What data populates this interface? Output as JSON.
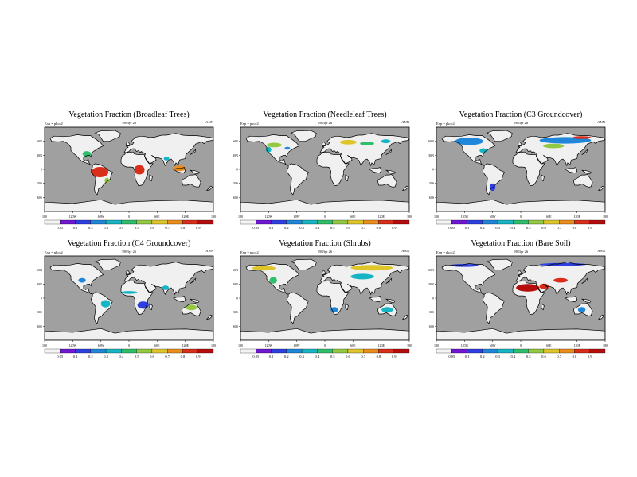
{
  "colors": {
    "ocean": "#a0a0a0",
    "land": "#f0f0f0",
    "coast": "#000000",
    "scale": [
      "#f4f4f4",
      "#6f17d3",
      "#2e3fe1",
      "#1f86d9",
      "#17b5c4",
      "#2fbf6b",
      "#93c842",
      "#ddc52a",
      "#eb8e1d",
      "#d92e1a",
      "#b50d0d"
    ]
  },
  "chart_data": [
    {
      "type": "heatmap",
      "title": "Vegetation Fraction (Broadleaf Trees)",
      "left_label": "Exp = pkcc2",
      "center_label": "1983yr 26",
      "right_label": "ANN",
      "lon_ticks": [
        "180",
        "120W",
        "60W",
        "0",
        "60E",
        "120E",
        "180"
      ],
      "lat_ticks": [
        "60N",
        "30N",
        "0",
        "30S",
        "60S"
      ],
      "colorbar": {
        "levels": [
          "0.05",
          "0.1",
          "0.2",
          "0.3",
          "0.4",
          "0.5",
          "0.6",
          "0.7",
          "0.8",
          "0.9"
        ]
      },
      "regions": [
        {
          "lon": -62,
          "lat": -6,
          "rlon": 18,
          "rlat": 11,
          "value": 0.85
        },
        {
          "lon": 22,
          "lat": -1,
          "rlon": 11,
          "rlat": 10,
          "value": 0.85
        },
        {
          "lon": 108,
          "lat": 2,
          "rlon": 14,
          "rlat": 6,
          "value": 0.7
        },
        {
          "lon": -90,
          "lat": 33,
          "rlon": 9,
          "rlat": 6,
          "value": 0.4
        },
        {
          "lon": 80,
          "lat": 23,
          "rlon": 6,
          "rlat": 4,
          "value": 0.3
        },
        {
          "lon": -47,
          "lat": -24,
          "rlon": 5,
          "rlat": 6,
          "value": 0.5
        }
      ]
    },
    {
      "type": "heatmap",
      "title": "Vegetation Fraction (Needleleaf Trees)",
      "left_label": "Exp = pkcc2",
      "center_label": "1983yr 26",
      "right_label": "ANN",
      "lon_ticks": [
        "180",
        "120W",
        "60W",
        "0",
        "60E",
        "120E",
        "180"
      ],
      "lat_ticks": [
        "60N",
        "30N",
        "0",
        "30S",
        "60S"
      ],
      "colorbar": {
        "levels": [
          "0.05",
          "0.1",
          "0.2",
          "0.3",
          "0.4",
          "0.5",
          "0.6",
          "0.7",
          "0.8",
          "0.9"
        ]
      },
      "regions": [
        {
          "lon": 50,
          "lat": 58,
          "rlon": 18,
          "rlat": 5,
          "value": 0.65
        },
        {
          "lon": 90,
          "lat": 55,
          "rlon": 15,
          "rlat": 4,
          "value": 0.45
        },
        {
          "lon": -108,
          "lat": 52,
          "rlon": 16,
          "rlat": 5,
          "value": 0.55
        },
        {
          "lon": -120,
          "lat": 42,
          "rlon": 6,
          "rlat": 6,
          "value": 0.35
        },
        {
          "lon": -80,
          "lat": 45,
          "rlon": 6,
          "rlat": 3,
          "value": 0.25
        },
        {
          "lon": 130,
          "lat": 60,
          "rlon": 10,
          "rlat": 4,
          "value": 0.3
        }
      ]
    },
    {
      "type": "heatmap",
      "title": "Vegetation Fraction (C3 Groundcover)",
      "left_label": "Exp = pkcc2",
      "center_label": "1983yr 26",
      "right_label": "ANN",
      "lon_ticks": [
        "180",
        "120W",
        "60W",
        "0",
        "60E",
        "120E",
        "180"
      ],
      "lat_ticks": [
        "60N",
        "30N",
        "0",
        "30S",
        "60S"
      ],
      "colorbar": {
        "levels": [
          "0.05",
          "0.1",
          "0.2",
          "0.3",
          "0.4",
          "0.5",
          "0.6",
          "0.7",
          "0.8",
          "0.9"
        ]
      },
      "regions": [
        {
          "lon": 95,
          "lat": 62,
          "rlon": 55,
          "rlat": 7,
          "value": 0.25
        },
        {
          "lon": 70,
          "lat": 50,
          "rlon": 22,
          "rlat": 5,
          "value": 0.55
        },
        {
          "lon": -110,
          "lat": 60,
          "rlon": 30,
          "rlat": 8,
          "value": 0.25
        },
        {
          "lon": 130,
          "lat": 68,
          "rlon": 20,
          "rlat": 3,
          "value": 0.85
        },
        {
          "lon": -80,
          "lat": 40,
          "rlon": 8,
          "rlat": 5,
          "value": 0.3
        },
        {
          "lon": -60,
          "lat": -38,
          "rlon": 6,
          "rlat": 8,
          "value": 0.1
        }
      ]
    },
    {
      "type": "heatmap",
      "title": "Vegetation Fraction (C4 Groundcover)",
      "left_label": "Exp = pkcc2",
      "center_label": "1983yr 26",
      "right_label": "ANN",
      "lon_ticks": [
        "180",
        "120W",
        "60W",
        "0",
        "60E",
        "120E",
        "180"
      ],
      "lat_ticks": [
        "60N",
        "30N",
        "0",
        "30S",
        "60S"
      ],
      "colorbar": {
        "levels": [
          "0.05",
          "0.1",
          "0.2",
          "0.3",
          "0.4",
          "0.5",
          "0.6",
          "0.7",
          "0.8",
          "0.9"
        ]
      },
      "regions": [
        {
          "lon": 30,
          "lat": -15,
          "rlon": 12,
          "rlat": 8,
          "value": 0.1
        },
        {
          "lon": 0,
          "lat": 12,
          "rlon": 18,
          "rlat": 3,
          "value": 0.35
        },
        {
          "lon": -50,
          "lat": -12,
          "rlon": 10,
          "rlat": 8,
          "value": 0.3
        },
        {
          "lon": 133,
          "lat": -20,
          "rlon": 12,
          "rlat": 6,
          "value": 0.55
        },
        {
          "lon": -100,
          "lat": 38,
          "rlon": 8,
          "rlat": 5,
          "value": 0.2
        },
        {
          "lon": 78,
          "lat": 22,
          "rlon": 7,
          "rlat": 5,
          "value": 0.3
        }
      ]
    },
    {
      "type": "heatmap",
      "title": "Vegetation Fraction (Shrubs)",
      "left_label": "Exp = pkcc2",
      "center_label": "1983yr 26",
      "right_label": "ANN",
      "lon_ticks": [
        "180",
        "120W",
        "60W",
        "0",
        "60E",
        "120E",
        "180"
      ],
      "lat_ticks": [
        "60N",
        "30N",
        "0",
        "30S",
        "60S"
      ],
      "colorbar": {
        "levels": [
          "0.05",
          "0.1",
          "0.2",
          "0.3",
          "0.4",
          "0.5",
          "0.6",
          "0.7",
          "0.8",
          "0.9"
        ]
      },
      "regions": [
        {
          "lon": 100,
          "lat": 65,
          "rlon": 45,
          "rlat": 6,
          "value": 0.65
        },
        {
          "lon": 80,
          "lat": 46,
          "rlon": 25,
          "rlat": 6,
          "value": 0.35
        },
        {
          "lon": -130,
          "lat": 64,
          "rlon": 25,
          "rlat": 5,
          "value": 0.65
        },
        {
          "lon": -110,
          "lat": 38,
          "rlon": 8,
          "rlat": 7,
          "value": 0.4
        },
        {
          "lon": 133,
          "lat": -25,
          "rlon": 12,
          "rlat": 6,
          "value": 0.3
        },
        {
          "lon": 20,
          "lat": -25,
          "rlon": 8,
          "rlat": 6,
          "value": 0.2
        }
      ]
    },
    {
      "type": "heatmap",
      "title": "Vegetation Fraction (Bare Soil)",
      "left_label": "Exp = pkcc2",
      "center_label": "1983yr 26",
      "right_label": "ANN",
      "lon_ticks": [
        "180",
        "120W",
        "60W",
        "0",
        "60E",
        "120E",
        "180"
      ],
      "lat_ticks": [
        "60N",
        "30N",
        "0",
        "30S",
        "60S"
      ],
      "colorbar": {
        "levels": [
          "0.05",
          "0.1",
          "0.2",
          "0.3",
          "0.4",
          "0.5",
          "0.6",
          "0.7",
          "0.8",
          "0.9"
        ]
      },
      "regions": [
        {
          "lon": 15,
          "lat": 22,
          "rlon": 25,
          "rlat": 8,
          "value": 0.92
        },
        {
          "lon": 50,
          "lat": 25,
          "rlon": 10,
          "rlat": 6,
          "value": 0.85
        },
        {
          "lon": 85,
          "lat": 38,
          "rlon": 15,
          "rlat": 5,
          "value": 0.85
        },
        {
          "lon": 90,
          "lat": 72,
          "rlon": 50,
          "rlat": 3,
          "value": 0.15
        },
        {
          "lon": -120,
          "lat": 70,
          "rlon": 30,
          "rlat": 3,
          "value": 0.15
        },
        {
          "lon": 130,
          "lat": -25,
          "rlon": 8,
          "rlat": 6,
          "value": 0.25
        }
      ]
    }
  ]
}
